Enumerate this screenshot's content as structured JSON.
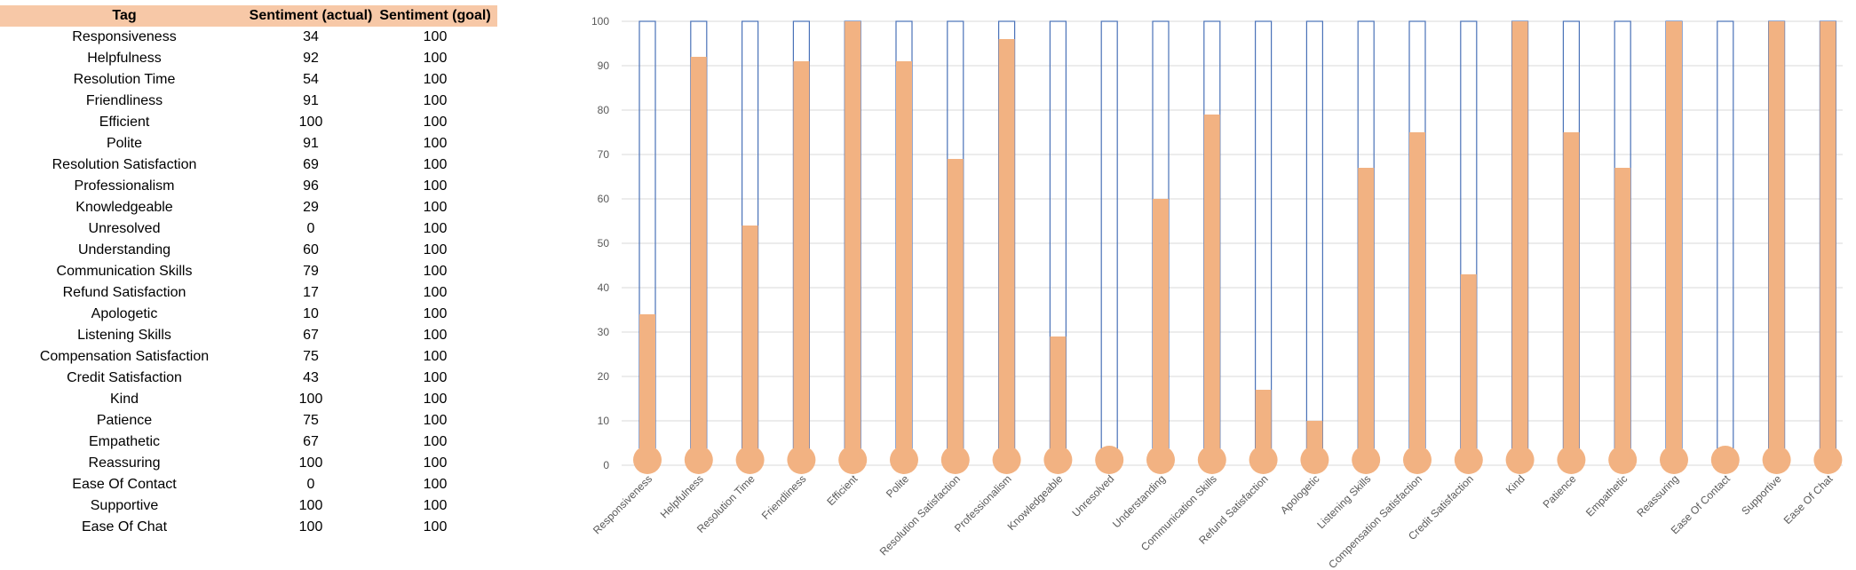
{
  "table": {
    "headers": [
      "Tag",
      "Sentiment (actual)",
      "Sentiment (goal)"
    ]
  },
  "chart_data": {
    "type": "bar",
    "categories": [
      "Responsiveness",
      "Helpfulness",
      "Resolution Time",
      "Friendliness",
      "Efficient",
      "Polite",
      "Resolution Satisfaction",
      "Professionalism",
      "Knowledgeable",
      "Unresolved",
      "Understanding",
      "Communication Skills",
      "Refund Satisfaction",
      "Apologetic",
      "Listening Skills",
      "Compensation Satisfaction",
      "Credit Satisfaction",
      "Kind",
      "Patience",
      "Empathetic",
      "Reassuring",
      "Ease Of Contact",
      "Supportive",
      "Ease Of Chat"
    ],
    "series": [
      {
        "name": "Sentiment (actual)",
        "values": [
          34,
          92,
          54,
          91,
          100,
          91,
          69,
          96,
          29,
          0,
          60,
          79,
          17,
          10,
          67,
          75,
          43,
          100,
          75,
          67,
          100,
          0,
          100,
          100
        ]
      },
      {
        "name": "Sentiment (goal)",
        "values": [
          100,
          100,
          100,
          100,
          100,
          100,
          100,
          100,
          100,
          100,
          100,
          100,
          100,
          100,
          100,
          100,
          100,
          100,
          100,
          100,
          100,
          100,
          100,
          100
        ]
      }
    ],
    "ylim": [
      0,
      100
    ],
    "yticks": [
      0,
      10,
      20,
      30,
      40,
      50,
      60,
      70,
      80,
      90,
      100
    ],
    "grid": true,
    "colors": {
      "fill": "#f2b282",
      "outline": "#4a72b8",
      "grid": "#d9d9d9",
      "header": "#f7c8a7"
    }
  }
}
